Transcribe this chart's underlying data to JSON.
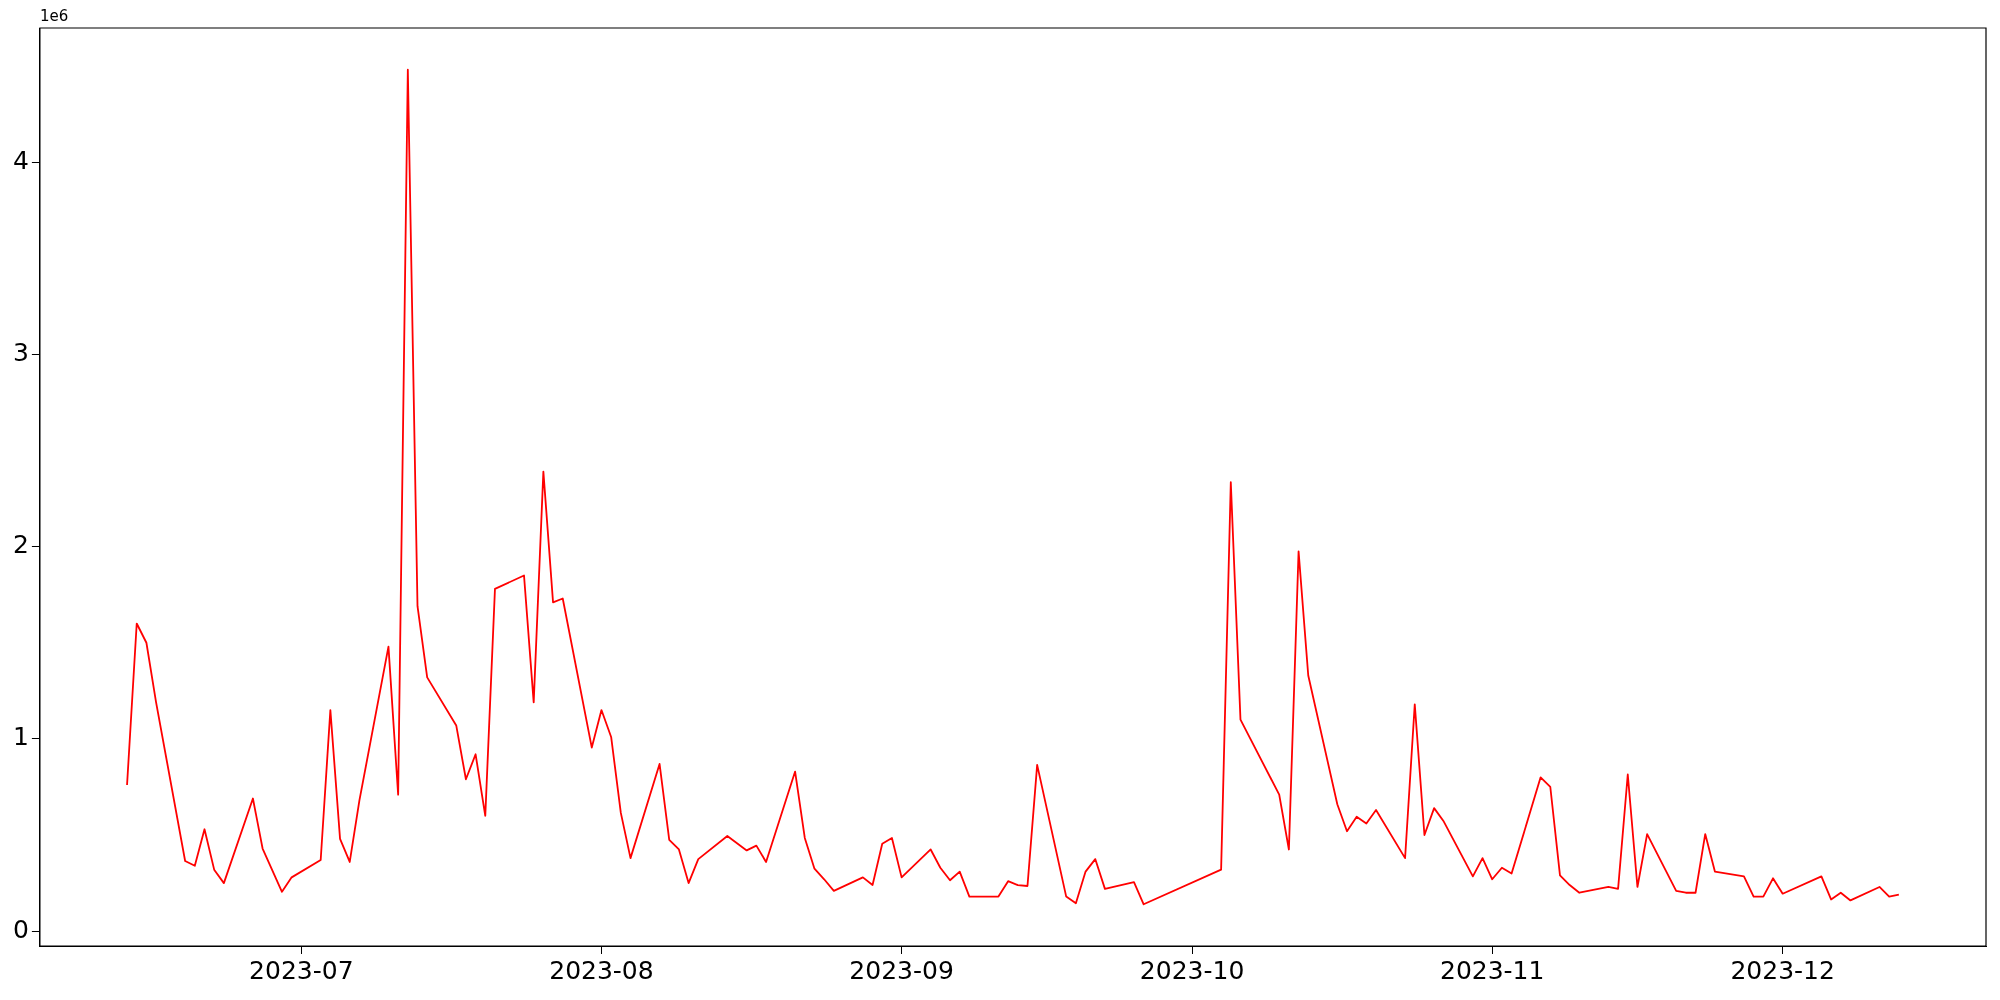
{
  "chart_data": {
    "type": "line",
    "annotations": [
      "1e6"
    ],
    "x": [
      "2023-06-13",
      "2023-06-14",
      "2023-06-15",
      "2023-06-16",
      "2023-06-19",
      "2023-06-20",
      "2023-06-21",
      "2023-06-22",
      "2023-06-23",
      "2023-06-26",
      "2023-06-27",
      "2023-06-29",
      "2023-06-30",
      "2023-07-03",
      "2023-07-04",
      "2023-07-05",
      "2023-07-06",
      "2023-07-07",
      "2023-07-10",
      "2023-07-11",
      "2023-07-12",
      "2023-07-13",
      "2023-07-14",
      "2023-07-17",
      "2023-07-18",
      "2023-07-19",
      "2023-07-20",
      "2023-07-21",
      "2023-07-24",
      "2023-07-25",
      "2023-07-26",
      "2023-07-27",
      "2023-07-28",
      "2023-07-31",
      "2023-08-01",
      "2023-08-02",
      "2023-08-03",
      "2023-08-04",
      "2023-08-07",
      "2023-08-08",
      "2023-08-09",
      "2023-08-10",
      "2023-08-11",
      "2023-08-14",
      "2023-08-16",
      "2023-08-17",
      "2023-08-18",
      "2023-08-21",
      "2023-08-22",
      "2023-08-23",
      "2023-08-24",
      "2023-08-25",
      "2023-08-28",
      "2023-08-29",
      "2023-08-30",
      "2023-08-31",
      "2023-09-01",
      "2023-09-04",
      "2023-09-05",
      "2023-09-06",
      "2023-09-07",
      "2023-09-08",
      "2023-09-11",
      "2023-09-12",
      "2023-09-13",
      "2023-09-14",
      "2023-09-15",
      "2023-09-18",
      "2023-09-19",
      "2023-09-20",
      "2023-09-21",
      "2023-09-22",
      "2023-09-25",
      "2023-09-26",
      "2023-10-04",
      "2023-10-05",
      "2023-10-06",
      "2023-10-10",
      "2023-10-11",
      "2023-10-12",
      "2023-10-13",
      "2023-10-16",
      "2023-10-17",
      "2023-10-18",
      "2023-10-19",
      "2023-10-20",
      "2023-10-23",
      "2023-10-24",
      "2023-10-25",
      "2023-10-26",
      "2023-10-27",
      "2023-10-30",
      "2023-10-31",
      "2023-11-01",
      "2023-11-02",
      "2023-11-03",
      "2023-11-06",
      "2023-11-07",
      "2023-11-08",
      "2023-11-09",
      "2023-11-10",
      "2023-11-13",
      "2023-11-14",
      "2023-11-15",
      "2023-11-16",
      "2023-11-17",
      "2023-11-20",
      "2023-11-21",
      "2023-11-22",
      "2023-11-23",
      "2023-11-24",
      "2023-11-27",
      "2023-11-28",
      "2023-11-29",
      "2023-11-30",
      "2023-12-01",
      "2023-12-05",
      "2023-12-06",
      "2023-12-07",
      "2023-12-08",
      "2023-12-11",
      "2023-12-12",
      "2023-12-13"
    ],
    "series": [
      {
        "color": "#ff0000",
        "values": [
          0.76,
          1.6,
          1.5,
          1.19,
          0.365,
          0.34,
          0.53,
          0.32,
          0.25,
          0.69,
          0.43,
          0.205,
          0.28,
          0.37,
          1.15,
          0.48,
          0.36,
          0.68,
          1.48,
          0.71,
          4.48,
          1.69,
          1.32,
          1.07,
          0.79,
          0.92,
          0.6,
          1.78,
          1.85,
          1.19,
          2.39,
          1.71,
          1.73,
          0.955,
          1.15,
          1.01,
          0.615,
          0.38,
          0.87,
          0.475,
          0.425,
          0.25,
          0.375,
          0.495,
          0.42,
          0.445,
          0.36,
          0.83,
          0.485,
          0.325,
          0.27,
          0.21,
          0.28,
          0.24,
          0.455,
          0.485,
          0.28,
          0.425,
          0.33,
          0.265,
          0.31,
          0.18,
          0.18,
          0.26,
          0.24,
          0.235,
          0.865,
          0.18,
          0.145,
          0.31,
          0.375,
          0.22,
          0.255,
          0.14,
          0.32,
          2.335,
          1.1,
          0.71,
          0.425,
          1.975,
          1.33,
          0.66,
          0.52,
          0.595,
          0.56,
          0.63,
          0.38,
          1.18,
          0.5,
          0.64,
          0.57,
          0.285,
          0.38,
          0.27,
          0.33,
          0.3,
          0.8,
          0.75,
          0.29,
          0.24,
          0.2,
          0.23,
          0.22,
          0.815,
          0.23,
          0.505,
          0.21,
          0.2,
          0.2,
          0.505,
          0.31,
          0.285,
          0.18,
          0.18,
          0.275,
          0.195,
          0.285,
          0.165,
          0.2,
          0.16,
          0.23,
          0.18,
          0.19
        ]
      }
    ],
    "xlim": [
      "2023-06-04",
      "2023-12-22"
    ],
    "xticks": [
      {
        "value": "2023-07-01",
        "label": "2023-07"
      },
      {
        "value": "2023-08-01",
        "label": "2023-08"
      },
      {
        "value": "2023-09-01",
        "label": "2023-09"
      },
      {
        "value": "2023-10-01",
        "label": "2023-10"
      },
      {
        "value": "2023-11-01",
        "label": "2023-11"
      },
      {
        "value": "2023-12-01",
        "label": "2023-12"
      }
    ],
    "ylim": [
      -0.077,
      4.697
    ],
    "yticks": [
      0,
      1,
      2,
      3,
      4
    ],
    "grid": false,
    "marker": "none",
    "line_style": "solid"
  }
}
